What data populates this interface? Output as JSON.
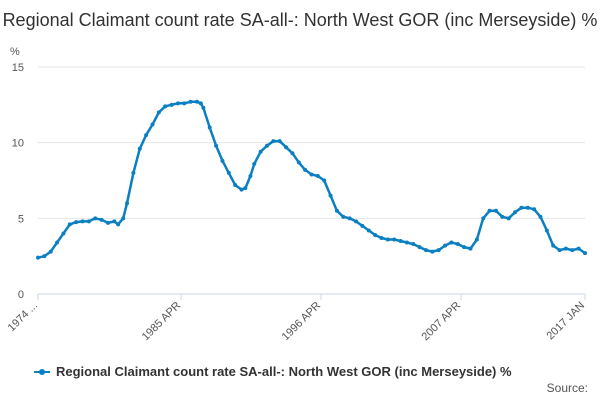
{
  "chart_data": {
    "type": "line",
    "title": "Regional Claimant count rate SA-all-: North West GOR (inc Merseyside) %",
    "ylabel": "%",
    "ylim": [
      0,
      15
    ],
    "yticks": [
      0,
      5,
      10,
      15
    ],
    "xlim": [
      1974.0,
      2017.0
    ],
    "xticks": [
      {
        "x": 1974.0,
        "label": "1974 ..."
      },
      {
        "x": 1985.25,
        "label": "1985 APR"
      },
      {
        "x": 1996.25,
        "label": "1996 APR"
      },
      {
        "x": 2007.25,
        "label": "2007 APR"
      },
      {
        "x": 2017.0,
        "label": "2017 JAN"
      }
    ],
    "grid": true,
    "legend_position": "bottom",
    "series": [
      {
        "name": "Regional Claimant count rate SA-all-: North West GOR (inc Merseyside) %",
        "color": "#0a7fc1",
        "points": [
          [
            1974.0,
            2.4
          ],
          [
            1974.5,
            2.5
          ],
          [
            1975.0,
            2.8
          ],
          [
            1975.5,
            3.4
          ],
          [
            1976.0,
            4.0
          ],
          [
            1976.5,
            4.6
          ],
          [
            1977.0,
            4.75
          ],
          [
            1977.5,
            4.8
          ],
          [
            1978.0,
            4.8
          ],
          [
            1978.5,
            5.0
          ],
          [
            1979.0,
            4.9
          ],
          [
            1979.5,
            4.7
          ],
          [
            1980.0,
            4.8
          ],
          [
            1980.3,
            4.6
          ],
          [
            1980.7,
            5.0
          ],
          [
            1981.0,
            6.0
          ],
          [
            1981.5,
            8.0
          ],
          [
            1982.0,
            9.6
          ],
          [
            1982.5,
            10.5
          ],
          [
            1983.0,
            11.2
          ],
          [
            1983.5,
            12.0
          ],
          [
            1984.0,
            12.4
          ],
          [
            1984.5,
            12.5
          ],
          [
            1985.0,
            12.6
          ],
          [
            1985.5,
            12.6
          ],
          [
            1986.0,
            12.7
          ],
          [
            1986.5,
            12.7
          ],
          [
            1986.8,
            12.6
          ],
          [
            1987.0,
            12.3
          ],
          [
            1987.5,
            11.0
          ],
          [
            1988.0,
            9.8
          ],
          [
            1988.5,
            8.8
          ],
          [
            1989.0,
            8.0
          ],
          [
            1989.5,
            7.2
          ],
          [
            1990.0,
            6.9
          ],
          [
            1990.3,
            7.0
          ],
          [
            1990.7,
            7.8
          ],
          [
            1991.0,
            8.6
          ],
          [
            1991.5,
            9.4
          ],
          [
            1992.0,
            9.8
          ],
          [
            1992.5,
            10.1
          ],
          [
            1993.0,
            10.1
          ],
          [
            1993.5,
            9.7
          ],
          [
            1994.0,
            9.3
          ],
          [
            1994.5,
            8.7
          ],
          [
            1995.0,
            8.2
          ],
          [
            1995.5,
            7.9
          ],
          [
            1996.0,
            7.8
          ],
          [
            1996.5,
            7.5
          ],
          [
            1997.0,
            6.5
          ],
          [
            1997.5,
            5.5
          ],
          [
            1998.0,
            5.1
          ],
          [
            1998.5,
            5.0
          ],
          [
            1999.0,
            4.8
          ],
          [
            1999.5,
            4.5
          ],
          [
            2000.0,
            4.2
          ],
          [
            2000.5,
            3.9
          ],
          [
            2001.0,
            3.7
          ],
          [
            2001.5,
            3.6
          ],
          [
            2002.0,
            3.6
          ],
          [
            2002.5,
            3.5
          ],
          [
            2003.0,
            3.4
          ],
          [
            2003.5,
            3.3
          ],
          [
            2004.0,
            3.1
          ],
          [
            2004.5,
            2.9
          ],
          [
            2005.0,
            2.8
          ],
          [
            2005.5,
            2.9
          ],
          [
            2006.0,
            3.2
          ],
          [
            2006.5,
            3.4
          ],
          [
            2007.0,
            3.3
          ],
          [
            2007.5,
            3.1
          ],
          [
            2008.0,
            3.0
          ],
          [
            2008.5,
            3.6
          ],
          [
            2009.0,
            5.0
          ],
          [
            2009.5,
            5.5
          ],
          [
            2010.0,
            5.5
          ],
          [
            2010.5,
            5.1
          ],
          [
            2011.0,
            5.0
          ],
          [
            2011.5,
            5.4
          ],
          [
            2012.0,
            5.7
          ],
          [
            2012.5,
            5.7
          ],
          [
            2013.0,
            5.6
          ],
          [
            2013.5,
            5.1
          ],
          [
            2014.0,
            4.2
          ],
          [
            2014.5,
            3.2
          ],
          [
            2015.0,
            2.9
          ],
          [
            2015.5,
            3.0
          ],
          [
            2016.0,
            2.9
          ],
          [
            2016.5,
            3.0
          ],
          [
            2017.0,
            2.7
          ]
        ]
      }
    ],
    "source_label": "Source:"
  }
}
